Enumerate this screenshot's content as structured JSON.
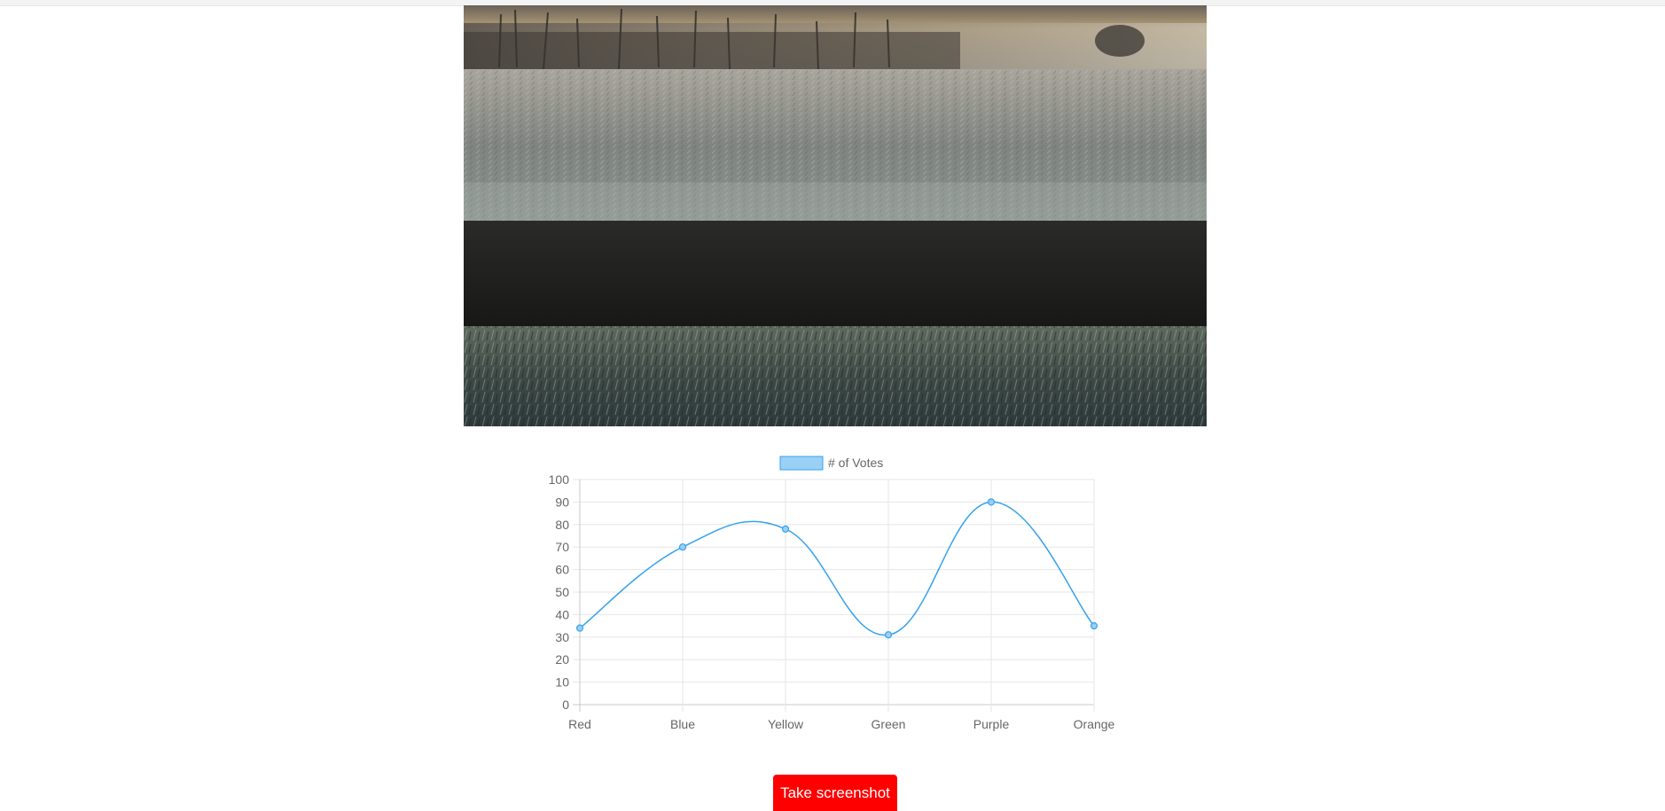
{
  "photo": {
    "subject": "frost-field-photo"
  },
  "chart_data": {
    "type": "line",
    "categories": [
      "Red",
      "Blue",
      "Yellow",
      "Green",
      "Purple",
      "Orange"
    ],
    "series": [
      {
        "name": "# of Votes",
        "values": [
          34,
          70,
          78,
          31,
          90,
          35
        ],
        "color": "#36a2eb",
        "fill_color": "#9ad0f5"
      }
    ],
    "ylim": [
      0,
      100
    ],
    "yticks": [
      "0",
      "10",
      "20",
      "30",
      "40",
      "50",
      "60",
      "70",
      "80",
      "90",
      "100"
    ],
    "grid": true,
    "legend": "top-center",
    "curve": "smooth"
  },
  "actions": {
    "screenshot_label": "Take screenshot"
  }
}
